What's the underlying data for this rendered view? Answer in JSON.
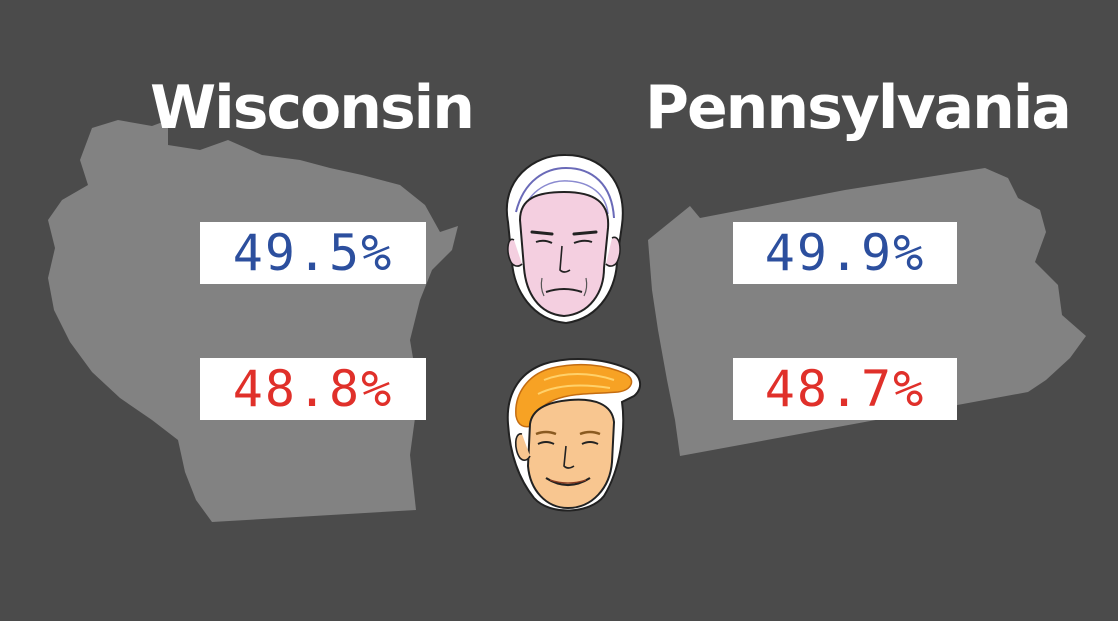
{
  "colors": {
    "background": "#4b4b4b",
    "state_fill": "#828282",
    "title": "#ffffff",
    "box": "#ffffff",
    "blue": "#2c4f9e",
    "red": "#e0302a"
  },
  "states": [
    {
      "name": "Wisconsin",
      "blue_value": "49.5%",
      "red_value": "48.8%"
    },
    {
      "name": "Pennsylvania",
      "blue_value": "49.9%",
      "red_value": "48.7%"
    }
  ],
  "icons": {
    "top_face": "biden-face-illustration",
    "bottom_face": "trump-face-illustration"
  }
}
